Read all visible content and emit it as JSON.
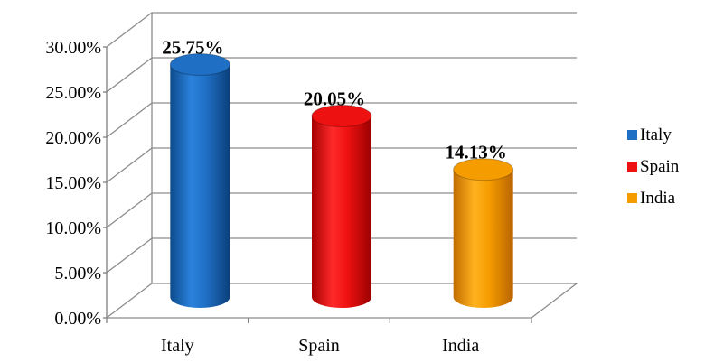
{
  "chart_data": {
    "type": "bar",
    "style": "3d-cylinder",
    "categories": [
      "Italy",
      "Spain",
      "India"
    ],
    "values": [
      25.75,
      20.05,
      14.13
    ],
    "data_labels": [
      "25.75%",
      "20.05%",
      "14.13%"
    ],
    "colors": [
      "#1f6fc5",
      "#ee1111",
      "#f59c00"
    ],
    "ylim": [
      0,
      30
    ],
    "y_ticks": [
      "0.00%",
      "5.00%",
      "10.00%",
      "15.00%",
      "20.00%",
      "25.00%",
      "30.00%"
    ],
    "grid": true,
    "legend": {
      "placement": "right",
      "entries": [
        "Italy",
        "Spain",
        "India"
      ]
    },
    "title": "",
    "xlabel": "",
    "ylabel": ""
  }
}
